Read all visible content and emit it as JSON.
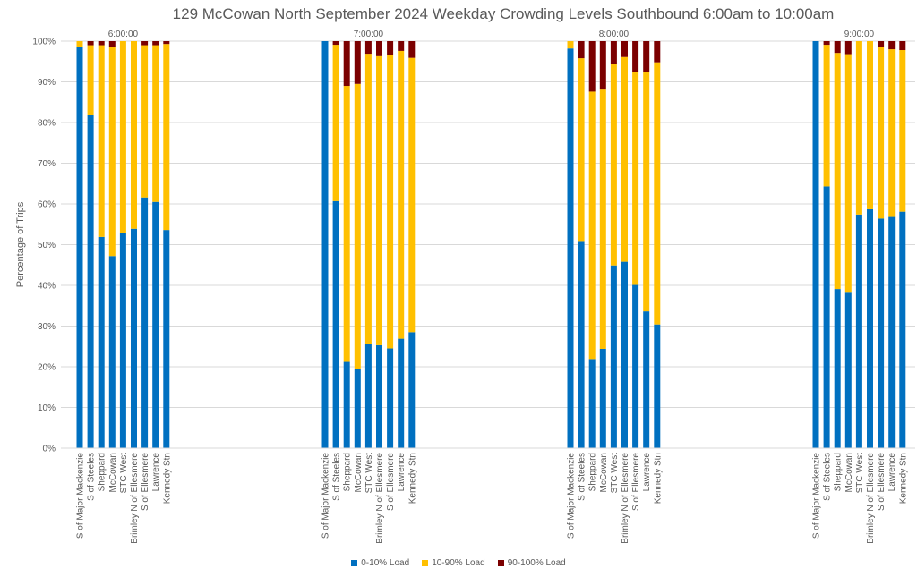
{
  "chart_data": {
    "type": "bar",
    "stacked": true,
    "title": "129 McCowan North September 2024  Weekday Crowding Levels Southbound 6:00am to 10:00am",
    "ylabel": "Percentage of Trips",
    "ylim": [
      0,
      100
    ],
    "yticks": [
      "0%",
      "10%",
      "20%",
      "30%",
      "40%",
      "50%",
      "60%",
      "70%",
      "80%",
      "90%",
      "100%"
    ],
    "grid": true,
    "legend_position": "bottom",
    "stops": [
      "S of Major Mackenzie",
      "S of Steeles",
      "Sheppard",
      "McCowan",
      "STC West",
      "Brimley N of Ellesmere",
      "S of Ellesmere",
      "Lawrence",
      "Kennedy Stn"
    ],
    "series_colors": {
      "0-10% Load": "#0070C0",
      "10-90% Load": "#FFC000",
      "90-100% Load": "#7B0000"
    },
    "legend": [
      "0-10% Load",
      "10-90% Load",
      "90-100% Load"
    ],
    "groups": [
      {
        "time": "6:00:00",
        "series": [
          {
            "name": "0-10% Load",
            "values": [
              98.5,
              81.9,
              51.9,
              47.2,
              52.8,
              53.9,
              61.6,
              60.5,
              53.6
            ]
          },
          {
            "name": "10-90% Load",
            "values": [
              1.5,
              17.1,
              47.1,
              51.3,
              47.2,
              46.1,
              37.4,
              38.5,
              45.7
            ]
          },
          {
            "name": "90-100% Load",
            "values": [
              0,
              1.0,
              1.0,
              1.5,
              0,
              0,
              1.0,
              1.0,
              0.7
            ]
          }
        ]
      },
      {
        "time": "7:00:00",
        "series": [
          {
            "name": "0-10% Load",
            "values": [
              100,
              60.7,
              21.2,
              19.4,
              25.6,
              25.3,
              24.5,
              26.9,
              28.5
            ]
          },
          {
            "name": "10-90% Load",
            "values": [
              0,
              38.4,
              67.8,
              70.1,
              71.3,
              71.0,
              72.0,
              70.7,
              67.4
            ]
          },
          {
            "name": "90-100% Load",
            "values": [
              0,
              0.9,
              11.0,
              10.5,
              3.1,
              3.7,
              3.5,
              2.4,
              4.1
            ]
          }
        ]
      },
      {
        "time": "8:00:00",
        "series": [
          {
            "name": "0-10% Load",
            "values": [
              98.2,
              50.9,
              21.9,
              24.4,
              44.9,
              45.8,
              40.1,
              33.6,
              30.4
            ]
          },
          {
            "name": "10-90% Load",
            "values": [
              1.8,
              44.9,
              65.7,
              63.7,
              49.4,
              50.3,
              52.4,
              58.9,
              64.4
            ]
          },
          {
            "name": "90-100% Load",
            "values": [
              0,
              4.2,
              12.4,
              11.9,
              5.7,
              3.9,
              7.5,
              7.5,
              5.2
            ]
          }
        ]
      },
      {
        "time": "9:00:00",
        "series": [
          {
            "name": "0-10% Load",
            "values": [
              100,
              64.3,
              39.1,
              38.4,
              57.4,
              58.7,
              56.4,
              56.8,
              58.1
            ]
          },
          {
            "name": "10-90% Load",
            "values": [
              0,
              34.8,
              58.0,
              58.4,
              42.6,
              41.3,
              42.1,
              41.2,
              39.7
            ]
          },
          {
            "name": "90-100% Load",
            "values": [
              0,
              0.9,
              2.9,
              3.2,
              0,
              0,
              1.5,
              2.0,
              2.2
            ]
          }
        ]
      }
    ]
  }
}
